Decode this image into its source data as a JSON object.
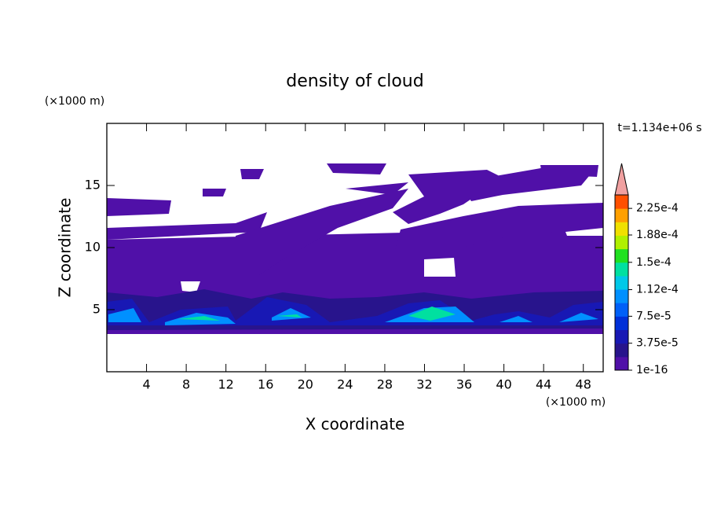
{
  "chart_data": {
    "type": "contour",
    "title": "density of cloud",
    "xlabel": "X coordinate",
    "ylabel": "Z coordinate",
    "x_unit": "(×1000 m)",
    "y_unit": "(×1000 m)",
    "time_label": "t=1.134e+06 s",
    "xlim": [
      0,
      50
    ],
    "ylim": [
      0,
      20
    ],
    "xticks": [
      4,
      8,
      12,
      16,
      20,
      24,
      28,
      32,
      36,
      40,
      44,
      48
    ],
    "yticks": [
      5,
      10,
      15
    ],
    "colorbar": {
      "clim": [
        1e-16,
        0.00024375
      ],
      "ticks": [
        {
          "value": 1e-16,
          "label": "1e-16"
        },
        {
          "value": 3.75e-05,
          "label": "3.75e-5"
        },
        {
          "value": 7.5e-05,
          "label": "7.5e-5"
        },
        {
          "value": 0.000112,
          "label": "1.12e-4"
        },
        {
          "value": 0.00015,
          "label": "1.5e-4"
        },
        {
          "value": 0.000188,
          "label": "1.88e-4"
        },
        {
          "value": 0.000225,
          "label": "2.25e-4"
        }
      ],
      "colors": [
        "#5010a8",
        "#28148c",
        "#1818b4",
        "#0030d8",
        "#0060f8",
        "#0090ff",
        "#00c8e8",
        "#00e0a0",
        "#20e020",
        "#b0f000",
        "#f0e000",
        "#ffa000",
        "#ff5000"
      ],
      "extend_color": "#f0a0a0"
    }
  }
}
